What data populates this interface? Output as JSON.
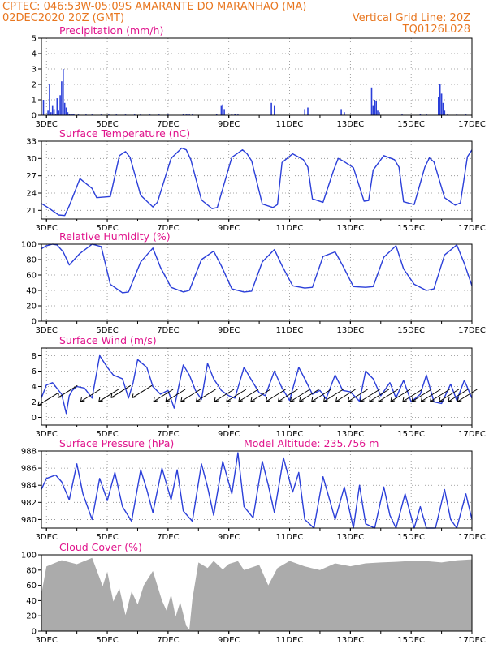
{
  "header": {
    "line1_left": "CPTEC:   046:53W-05:09S   AMARANTE DO MARANHAO (MA)",
    "line2_left": "02DEC2020 20Z (GMT)",
    "line2_right": "Vertical Grid Line: 20Z",
    "line3_right": "TQ0126L028"
  },
  "colors": {
    "series": "#2b3fd9",
    "cloud": "#ababab",
    "wind_arrow": "#000000",
    "title": "#e0148c",
    "header": "#e8761f"
  },
  "x_axis": {
    "start_day": 2,
    "start_hour": 20,
    "end_day": 17,
    "end_hour": 0,
    "month": "DEC",
    "tick_labels": [
      "3DEC",
      "5DEC",
      "7DEC",
      "9DEC",
      "11DEC",
      "13DEC",
      "15DEC",
      "17DEC"
    ],
    "tick_days": [
      3,
      5,
      7,
      9,
      11,
      13,
      15,
      17
    ]
  },
  "chart_data": [
    {
      "id": "precip",
      "type": "bar",
      "title": "Precipitation (mm/h)",
      "ylim": [
        0,
        5
      ],
      "yticks": [
        0,
        1,
        2,
        3,
        4,
        5
      ],
      "grid": true,
      "series": [
        {
          "x_day": [
            2.9,
            3.05,
            3.1,
            3.15,
            3.2,
            3.25,
            3.3,
            3.35,
            3.4,
            3.45,
            3.5,
            3.55,
            3.6,
            3.65,
            3.7,
            3.75,
            3.8,
            3.85,
            3.9,
            4.05,
            4.3,
            4.5,
            4.8,
            5.05,
            5.3,
            5.6,
            5.9,
            6.1,
            6.4,
            6.7,
            7.0,
            7.5,
            7.6,
            7.65,
            7.7,
            7.8,
            8.6,
            8.75,
            8.8,
            8.85,
            9.1,
            9.2,
            9.3,
            10.4,
            10.5,
            11.5,
            11.6,
            12.7,
            12.8,
            13.7,
            13.75,
            13.8,
            13.85,
            13.9,
            13.95,
            14.7,
            15.3,
            15.5,
            15.9,
            15.95,
            16.0,
            16.05,
            16.1,
            16.2,
            16.5,
            16.8
          ],
          "values": [
            1.0,
            0.3,
            2.0,
            0.2,
            0.6,
            0.4,
            0.1,
            1.1,
            0.3,
            1.3,
            2.2,
            3.0,
            0.8,
            0.5,
            0.2,
            0.1,
            0.1,
            0.1,
            0.1,
            0.05,
            0.05,
            0.05,
            0.05,
            0.05,
            0.05,
            0.05,
            0.05,
            0.1,
            0.05,
            0.05,
            0.05,
            0.1,
            0.05,
            0.05,
            0.05,
            0.05,
            0.1,
            0.6,
            0.7,
            0.4,
            0.1,
            0.1,
            0.05,
            0.8,
            0.6,
            0.4,
            0.5,
            0.4,
            0.2,
            1.8,
            0.6,
            1.0,
            0.9,
            0.3,
            0.2,
            0.05,
            0.1,
            0.1,
            1.2,
            2.0,
            1.4,
            0.8,
            0.3,
            0.1,
            0.05,
            0.05
          ]
        }
      ]
    },
    {
      "id": "temp",
      "type": "line",
      "title": "Surface Temperature (nC)",
      "ylim": [
        19.5,
        33
      ],
      "yticks": [
        21,
        24,
        27,
        30,
        33
      ],
      "grid": true,
      "series": [
        {
          "x_day": [
            2.83,
            3.1,
            3.4,
            3.6,
            3.75,
            4.1,
            4.5,
            4.65,
            5.1,
            5.4,
            5.6,
            5.75,
            6.1,
            6.5,
            6.65,
            7.1,
            7.45,
            7.6,
            7.75,
            8.1,
            8.45,
            8.62,
            9.1,
            9.45,
            9.6,
            9.75,
            10.1,
            10.45,
            10.6,
            10.75,
            11.1,
            11.45,
            11.6,
            11.75,
            12.1,
            12.45,
            12.6,
            12.75,
            13.1,
            13.45,
            13.6,
            13.75,
            14.1,
            14.45,
            14.6,
            14.75,
            15.1,
            15.45,
            15.6,
            15.75,
            16.1,
            16.45,
            16.62,
            16.85,
            17.0
          ],
          "values": [
            22.2,
            21.3,
            20.2,
            20.1,
            21.8,
            26.5,
            24.8,
            23.2,
            23.4,
            30.5,
            31.2,
            30.2,
            23.6,
            21.6,
            22.4,
            30.0,
            31.8,
            31.5,
            29.8,
            22.8,
            21.3,
            21.5,
            30.2,
            31.5,
            30.8,
            29.6,
            22.1,
            21.5,
            22.0,
            29.3,
            30.8,
            29.8,
            28.5,
            23.0,
            22.4,
            28.0,
            30.0,
            29.6,
            28.4,
            22.6,
            22.7,
            28.0,
            30.5,
            29.8,
            28.5,
            22.5,
            22.0,
            28.5,
            30.1,
            29.4,
            23.2,
            21.9,
            22.3,
            30.3,
            31.5
          ]
        }
      ]
    },
    {
      "id": "rh",
      "type": "line",
      "title": "Relative Humidity (%)",
      "ylim": [
        0,
        100
      ],
      "yticks": [
        0,
        20,
        40,
        60,
        80,
        100
      ],
      "grid": true,
      "series": [
        {
          "x_day": [
            2.83,
            3.0,
            3.2,
            3.35,
            3.55,
            3.75,
            4.1,
            4.5,
            4.8,
            5.1,
            5.5,
            5.7,
            6.1,
            6.5,
            6.75,
            7.1,
            7.5,
            7.7,
            8.1,
            8.5,
            8.75,
            9.1,
            9.5,
            9.75,
            10.1,
            10.5,
            10.75,
            11.1,
            11.5,
            11.75,
            12.1,
            12.5,
            12.75,
            13.1,
            13.5,
            13.75,
            14.1,
            14.5,
            14.75,
            15.1,
            15.5,
            15.75,
            16.1,
            16.5,
            16.75,
            17.0
          ],
          "values": [
            94,
            98,
            100,
            99,
            90,
            73,
            88,
            100,
            97,
            48,
            37,
            38,
            77,
            95,
            70,
            44,
            38,
            40,
            80,
            91,
            72,
            42,
            38,
            39,
            77,
            93,
            72,
            46,
            43,
            44,
            84,
            90,
            72,
            45,
            44,
            45,
            83,
            98,
            68,
            48,
            40,
            42,
            86,
            99,
            75,
            46
          ]
        }
      ]
    },
    {
      "id": "wind",
      "type": "line",
      "title": "Surface Wind (m/s)",
      "ylim": [
        -1,
        9
      ],
      "yticks": [
        0,
        2,
        4,
        6,
        8
      ],
      "grid": true,
      "series": [
        {
          "x_day": [
            2.83,
            3.0,
            3.2,
            3.5,
            3.65,
            3.75,
            3.85,
            4.0,
            4.25,
            4.5,
            4.75,
            5.0,
            5.2,
            5.5,
            5.7,
            5.85,
            6.0,
            6.3,
            6.5,
            6.75,
            7.0,
            7.2,
            7.5,
            7.7,
            7.9,
            8.1,
            8.3,
            8.5,
            8.75,
            9.0,
            9.2,
            9.5,
            9.75,
            10.0,
            10.2,
            10.5,
            10.75,
            11.0,
            11.3,
            11.5,
            11.75,
            12.0,
            12.2,
            12.5,
            12.75,
            13.0,
            13.3,
            13.5,
            13.75,
            14.0,
            14.3,
            14.5,
            14.75,
            15.0,
            15.3,
            15.5,
            15.75,
            16.0,
            16.3,
            16.5,
            16.75,
            17.0
          ],
          "values": [
            2.5,
            4.2,
            4.5,
            3.0,
            0.5,
            2.8,
            3.5,
            4.0,
            3.8,
            2.5,
            8.0,
            6.5,
            5.5,
            5.0,
            2.5,
            4.5,
            7.5,
            6.5,
            4.0,
            3.0,
            3.5,
            1.2,
            6.8,
            5.5,
            3.5,
            2.3,
            7.0,
            5.0,
            3.5,
            2.8,
            2.5,
            6.5,
            4.8,
            3.2,
            2.8,
            6.0,
            3.8,
            2.2,
            6.5,
            5.0,
            3.0,
            3.5,
            2.4,
            5.5,
            3.5,
            3.3,
            2.1,
            6.0,
            5.0,
            2.8,
            4.5,
            2.5,
            4.8,
            2.0,
            3.0,
            5.5,
            2.0,
            1.8,
            4.3,
            2.2,
            4.8,
            2.5
          ]
        }
      ],
      "arrows": {
        "x_day": [
          3.1,
          3.75,
          4.5,
          5.1,
          5.5,
          6.2,
          6.9,
          7.3,
          7.8,
          8.3,
          8.9,
          9.3,
          9.7,
          10.1,
          10.6,
          11.0,
          11.4,
          11.7,
          12.1,
          12.5,
          12.9,
          13.3,
          13.7,
          14.0,
          14.3,
          14.7,
          15.1,
          15.4,
          15.7,
          16.0,
          16.3,
          16.6,
          16.9
        ],
        "y": [
          2.5,
          3.5,
          3.0,
          3.0,
          3.5,
          3.5,
          3.0,
          3.0,
          3.0,
          3.0,
          3.0,
          3.0,
          3.0,
          3.0,
          3.0,
          3.0,
          3.0,
          3.0,
          3.0,
          3.0,
          3.0,
          3.0,
          3.0,
          3.0,
          3.0,
          3.0,
          3.0,
          3.0,
          3.0,
          3.0,
          3.0,
          3.0,
          3.0
        ]
      }
    },
    {
      "id": "pres",
      "type": "line",
      "title": "Surface Pressure (hPa)",
      "subtitle": "Model Altitude: 235.756 m",
      "ylim": [
        979,
        988
      ],
      "yticks": [
        980,
        982,
        984,
        986,
        988
      ],
      "grid": true,
      "series": [
        {
          "x_day": [
            2.83,
            3.0,
            3.3,
            3.5,
            3.75,
            4.0,
            4.2,
            4.5,
            4.75,
            5.0,
            5.25,
            5.5,
            5.8,
            6.1,
            6.3,
            6.5,
            6.8,
            7.1,
            7.3,
            7.5,
            7.8,
            8.1,
            8.3,
            8.5,
            8.8,
            9.1,
            9.3,
            9.5,
            9.8,
            10.1,
            10.3,
            10.5,
            10.8,
            11.1,
            11.3,
            11.5,
            11.8,
            12.1,
            12.3,
            12.5,
            12.8,
            13.1,
            13.3,
            13.5,
            13.8,
            14.1,
            14.3,
            14.5,
            14.8,
            15.1,
            15.3,
            15.5,
            15.8,
            16.1,
            16.3,
            16.5,
            16.8,
            17.0
          ],
          "values": [
            983.5,
            984.8,
            985.2,
            984.4,
            982.3,
            986.5,
            983.0,
            980.0,
            984.8,
            982.2,
            985.5,
            981.5,
            979.8,
            985.8,
            983.5,
            980.8,
            986.0,
            982.3,
            985.8,
            981.0,
            979.8,
            986.5,
            983.8,
            980.5,
            986.8,
            983.0,
            987.8,
            981.5,
            980.2,
            986.8,
            984.0,
            980.8,
            987.2,
            983.2,
            985.5,
            980.0,
            978.8,
            985.0,
            982.5,
            980.0,
            983.8,
            979.0,
            984.0,
            979.5,
            978.6,
            983.8,
            980.5,
            979.0,
            983.0,
            978.7,
            981.5,
            978.8,
            978.5,
            983.5,
            980.0,
            978.0,
            983.0,
            980.0
          ]
        }
      ]
    },
    {
      "id": "cloud",
      "type": "area",
      "title": "Cloud Cover (%)",
      "ylim": [
        0,
        100
      ],
      "yticks": [
        0,
        20,
        40,
        60,
        80,
        100
      ],
      "grid": false,
      "series": [
        {
          "x_day": [
            2.83,
            3.0,
            3.5,
            4.0,
            4.5,
            4.85,
            5.0,
            5.2,
            5.4,
            5.6,
            5.8,
            6.0,
            6.2,
            6.5,
            6.8,
            6.95,
            7.1,
            7.25,
            7.4,
            7.6,
            7.7,
            7.8,
            8.0,
            8.3,
            8.5,
            8.8,
            9.0,
            9.3,
            9.5,
            10.0,
            10.3,
            10.6,
            11.0,
            11.5,
            12.0,
            12.5,
            13.0,
            13.5,
            14.0,
            14.5,
            15.0,
            15.5,
            16.0,
            16.5,
            17.0
          ],
          "values": [
            48,
            88,
            93,
            91,
            96,
            62,
            78,
            42,
            56,
            24,
            52,
            38,
            60,
            82,
            40,
            30,
            48,
            22,
            38,
            10,
            2,
            45,
            90,
            86,
            92,
            84,
            88,
            95,
            80,
            90,
            60,
            86,
            92,
            88,
            80,
            92,
            85,
            92,
            90,
            94,
            92,
            95,
            90,
            96,
            94
          ]
        }
      ]
    }
  ]
}
